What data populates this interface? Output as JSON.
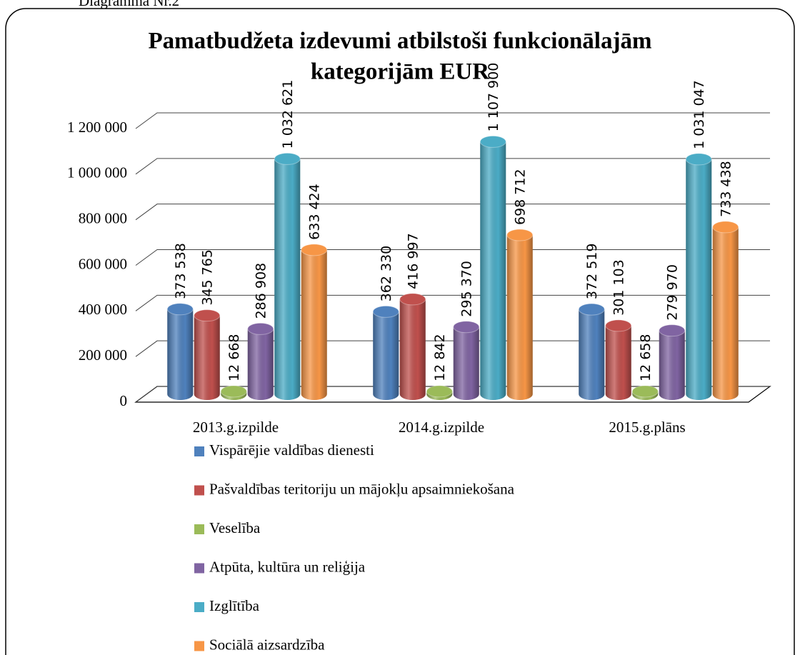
{
  "caption": "Diagramma Nr.2",
  "chart_data": {
    "type": "bar3d",
    "title": "Pamatbudžeta izdevumi  atbilstoši funkcionālajām",
    "subtitle": "kategorijām EUR",
    "categories": [
      "2013.g.izpilde",
      "2014.g.izpilde",
      "2015.g.plāns"
    ],
    "series": [
      {
        "name": "Vispārējie valdības dienesti",
        "color": "#4f81bd",
        "values": [
          373538,
          362330,
          372519
        ],
        "value_labels": [
          "373 538",
          "362 330",
          "372 519"
        ]
      },
      {
        "name": "Pašvaldības teritoriju un mājokļu apsaimniekošana",
        "color": "#c0504d",
        "values": [
          345765,
          416997,
          301103
        ],
        "value_labels": [
          "345 765",
          "416 997",
          "301 103"
        ]
      },
      {
        "name": "Veselība",
        "color": "#9bbb59",
        "values": [
          12668,
          12842,
          12658
        ],
        "value_labels": [
          "12 668",
          "12 842",
          "12 658"
        ]
      },
      {
        "name": "Atpūta, kultūra un reliģija",
        "color": "#8064a2",
        "values": [
          286908,
          295370,
          279970
        ],
        "value_labels": [
          "286 908",
          "295 370",
          "279 970"
        ]
      },
      {
        "name": "Izglītība",
        "color": "#4bacc6",
        "values": [
          1032621,
          1107900,
          1031047
        ],
        "value_labels": [
          "1 032 621",
          "1 107 900",
          "1 031 047"
        ]
      },
      {
        "name": "Sociālā aizsardzība",
        "color": "#f79646",
        "values": [
          633424,
          698712,
          733438
        ],
        "value_labels": [
          "633 424",
          "698 712",
          "733 438"
        ]
      }
    ],
    "ylim": [
      0,
      1200000
    ],
    "yticks": [
      0,
      {
        "value": 200000,
        "label": "200 000"
      },
      {
        "value": 400000,
        "label": "400 000"
      },
      {
        "value": 600000,
        "label": "600 000"
      },
      {
        "value": 800000,
        "label": "800 000"
      },
      {
        "value": 1000000,
        "label": "1 000 000"
      },
      {
        "value": 1200000,
        "label": "1 200 000"
      }
    ],
    "grid": true,
    "legend": "bottom"
  }
}
